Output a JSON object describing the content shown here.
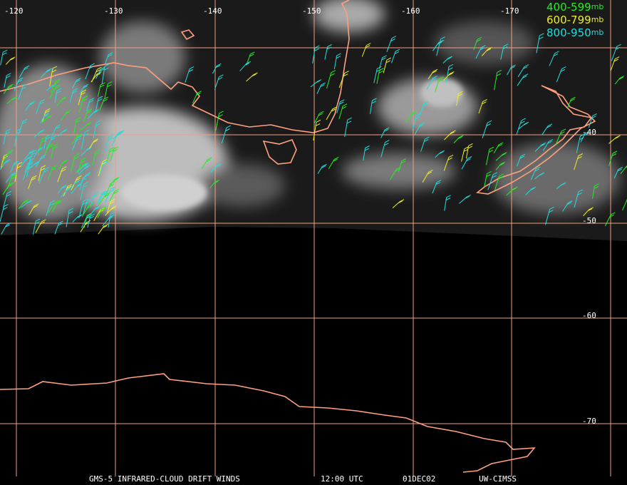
{
  "longitudes": [
    "-120",
    "-130",
    "-140",
    "-150",
    "-160",
    "-170"
  ],
  "latitudes": [
    "-40",
    "-50",
    "-60",
    "-70"
  ],
  "legend": [
    {
      "range": "400-599",
      "unit": "mb",
      "color": "#22ee22"
    },
    {
      "range": "600-799",
      "unit": "mb",
      "color": "#eeee22"
    },
    {
      "range": "800-950",
      "unit": "mb",
      "color": "#22dddd"
    }
  ],
  "footer": [
    "GMS-5 INFRARED-CLOUD DRIFT WINDS",
    "12:00 UTC",
    "01DEC02",
    "UW-CIMSS"
  ]
}
